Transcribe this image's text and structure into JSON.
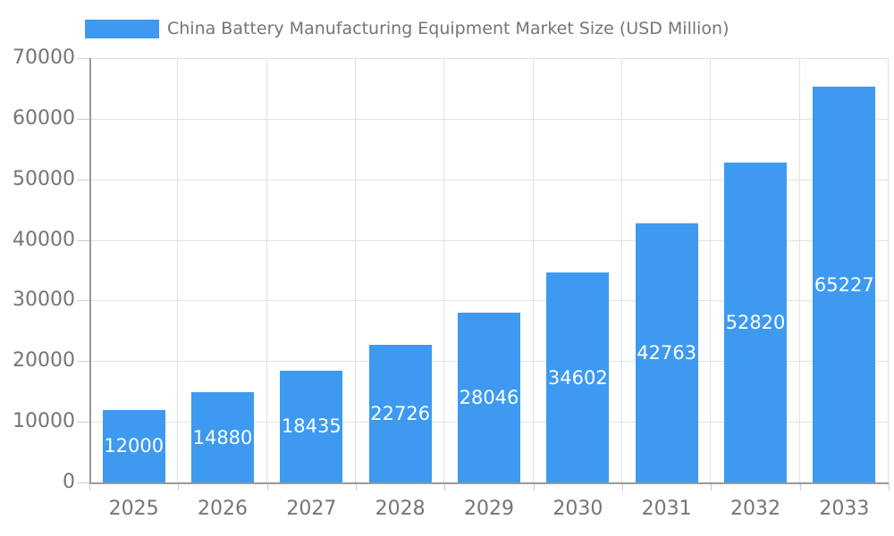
{
  "legend": {
    "label": "China Battery Manufacturing Equipment Market Size (USD Million)"
  },
  "chart_data": {
    "type": "bar",
    "title": "China Battery Manufacturing Equipment Market Size (USD Million)",
    "categories": [
      "2025",
      "2026",
      "2027",
      "2028",
      "2029",
      "2030",
      "2031",
      "2032",
      "2033"
    ],
    "values": [
      12000,
      14880,
      18435,
      22726,
      28046,
      34602,
      42763,
      52820,
      65227
    ],
    "xlabel": "",
    "ylabel": "",
    "ylim": [
      0,
      70000
    ],
    "yticks": [
      0,
      10000,
      20000,
      30000,
      40000,
      50000,
      60000,
      70000
    ],
    "grid": true,
    "legend_position": "top",
    "value_label_position": "inside-middle",
    "colors": {
      "bar": "#3D9AF0",
      "grid": "#E2E2E2",
      "tick": "#CCCCCC",
      "axis": "#999999",
      "axis_text": "#757575",
      "value_label": "#FFFFFF"
    }
  }
}
